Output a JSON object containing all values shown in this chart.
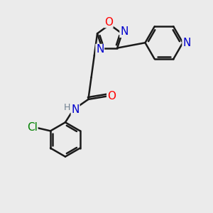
{
  "bg_color": "#ebebeb",
  "bond_color": "#1a1a1a",
  "bond_width": 1.8,
  "atom_colors": {
    "O": "#ff0000",
    "N": "#0000cc",
    "Cl": "#008000",
    "C": "#1a1a1a",
    "H": "#708090"
  },
  "font_size": 11,
  "font_size_h": 9,
  "dbl_sep": 0.1
}
